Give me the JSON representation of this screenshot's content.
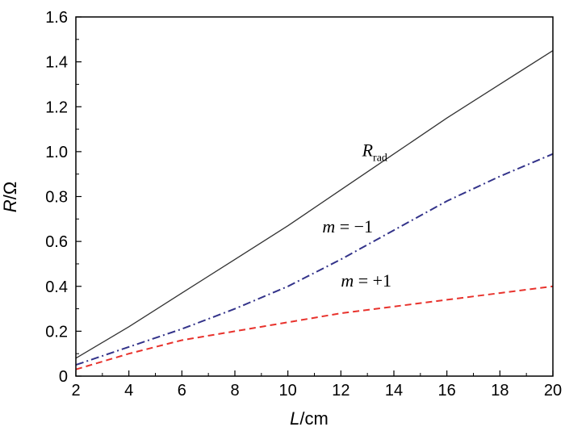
{
  "chart_data": {
    "type": "line",
    "title": "",
    "xlabel": {
      "var": "L",
      "unit": "/cm"
    },
    "ylabel": {
      "var": "R",
      "unit": "/Ω"
    },
    "xlim": [
      2,
      20
    ],
    "ylim": [
      0,
      1.6
    ],
    "xticks": [
      2,
      4,
      6,
      8,
      10,
      12,
      14,
      16,
      18,
      20
    ],
    "yticks": [
      0,
      0.2,
      0.4,
      0.6,
      0.8,
      1.0,
      1.2,
      1.4,
      1.6
    ],
    "ytick_labels": [
      "0",
      "0.2",
      "0.4",
      "0.6",
      "0.8",
      "1.0",
      "1.2",
      "1.4",
      "1.6"
    ],
    "grid": false,
    "series": [
      {
        "label_main": "R",
        "label_sub": "rad",
        "label_pos": [
          12.8,
          0.98
        ],
        "color": "#333333",
        "dash": "solid",
        "x": [
          2,
          4,
          6,
          8,
          10,
          12,
          14,
          16,
          18,
          20
        ],
        "y": [
          0.08,
          0.22,
          0.37,
          0.52,
          0.67,
          0.83,
          0.99,
          1.15,
          1.3,
          1.45
        ]
      },
      {
        "label_main": "m",
        "label_rest": " = −1",
        "label_pos": [
          11.3,
          0.64
        ],
        "color": "#33338a",
        "dash": "dashdot",
        "x": [
          2,
          4,
          6,
          8,
          10,
          12,
          14,
          16,
          18,
          20
        ],
        "y": [
          0.05,
          0.13,
          0.21,
          0.3,
          0.4,
          0.52,
          0.65,
          0.78,
          0.89,
          0.99
        ]
      },
      {
        "label_main": "m",
        "label_rest": " = +1",
        "label_pos": [
          12.0,
          0.4
        ],
        "color": "#e8322c",
        "dash": "dashed",
        "x": [
          2,
          4,
          6,
          8,
          10,
          12,
          14,
          16,
          18,
          20
        ],
        "y": [
          0.03,
          0.1,
          0.16,
          0.2,
          0.24,
          0.28,
          0.31,
          0.34,
          0.37,
          0.4
        ]
      }
    ]
  }
}
